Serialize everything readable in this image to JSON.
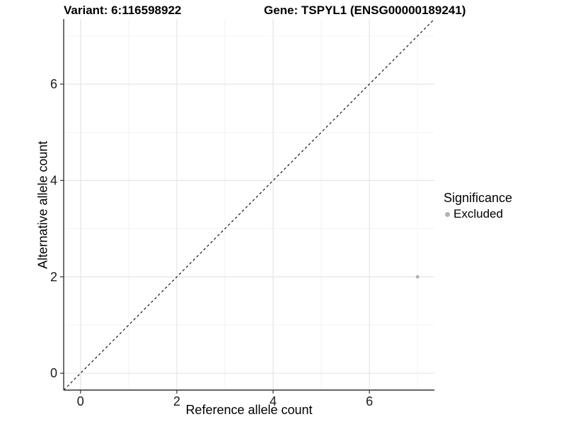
{
  "header": {
    "variant_title": "Variant: 6:116598922",
    "gene_title": "Gene: TSPYL1 (ENSG00000189241)"
  },
  "chart_data": {
    "type": "scatter",
    "xlabel": "Reference allele count",
    "ylabel": "Alternative allele count",
    "xlim": [
      -0.35,
      7.35
    ],
    "ylim": [
      -0.35,
      7.35
    ],
    "x_ticks": [
      0,
      2,
      4,
      6
    ],
    "y_ticks": [
      0,
      2,
      4,
      6
    ],
    "x_minor_gridlines": [
      1,
      3,
      5,
      7
    ],
    "y_minor_gridlines": [
      1,
      3,
      5,
      7
    ],
    "grid": "major and minor, light gray on white panel",
    "identity_line": {
      "slope": 1,
      "intercept": 0,
      "style": "dashed",
      "color": "#000000"
    },
    "series": [
      {
        "name": "Excluded",
        "color": "#b3b3b3",
        "point_radius": 2.5,
        "points": [
          {
            "x": 7,
            "y": 2
          }
        ]
      }
    ],
    "legend": {
      "title": "Significance",
      "position": "right",
      "entries": [
        {
          "label": "Excluded",
          "color": "#b3b3b3"
        }
      ]
    }
  },
  "colors": {
    "axis_line": "#333333",
    "tick_mark": "#333333",
    "tick_label": "#1a1a1a",
    "grid_major": "#e3e3e3",
    "grid_minor": "#f1f1f1",
    "panel_background": "#ffffff"
  }
}
